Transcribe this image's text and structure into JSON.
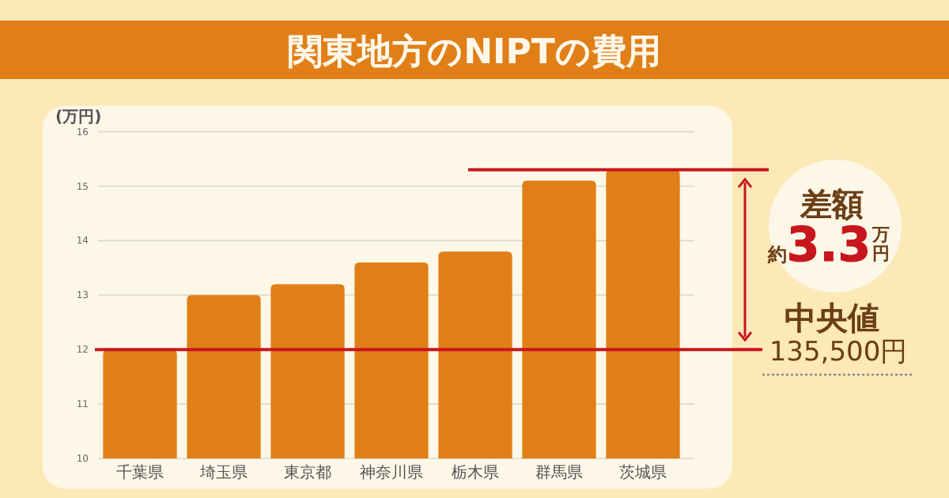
{
  "chart_data": {
    "type": "bar",
    "title": "関東地方のNIPTの費用",
    "ylabel": "(万円)",
    "categories": [
      "千葉県",
      "埼玉県",
      "東京都",
      "神奈川県",
      "栃木県",
      "群馬県",
      "茨城県"
    ],
    "values": [
      12.0,
      13.0,
      13.2,
      13.6,
      13.8,
      15.1,
      15.3
    ],
    "color": "#e07f18",
    "ylim": [
      10,
      16
    ],
    "yticks": [
      10,
      11,
      12,
      13,
      14,
      15,
      16
    ],
    "grid": "y",
    "ref_lines": [
      {
        "axis": "y",
        "value": 15.3,
        "color": "#c8161d"
      },
      {
        "axis": "y",
        "value": 12.0,
        "color": "#c8161d"
      }
    ],
    "annotations": [
      "差額",
      "約**3.3**万円",
      "中央値",
      "135,500円"
    ]
  }
}
